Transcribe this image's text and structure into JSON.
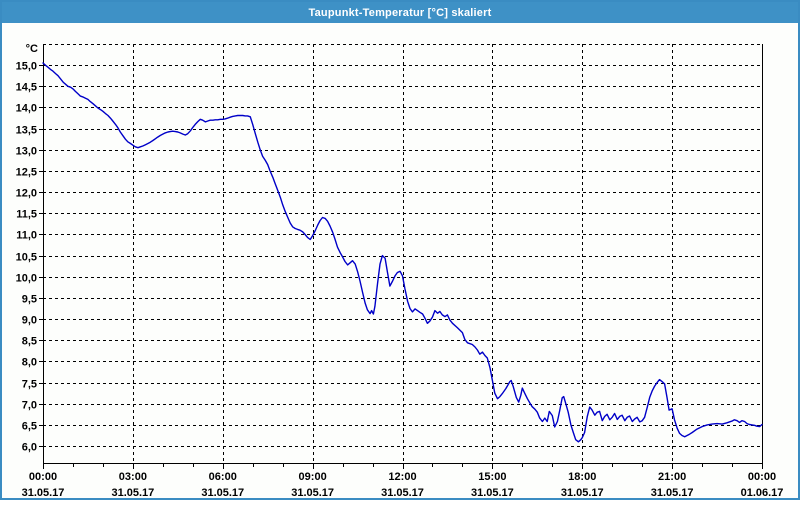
{
  "window": {
    "title": "Taupunkt-Temperatur [°C] skaliert",
    "title_bar_color": "#3e91c6",
    "border_color": "#3a8cc2",
    "background_color": "#fdfefc"
  },
  "chart_data": {
    "type": "line",
    "title": "Taupunkt-Temperatur [°C] skaliert",
    "unit_label": "°C",
    "line_color": "#0000c8",
    "grid": "dashed",
    "grid_color": "#000000",
    "legend_position": "none",
    "xlabel": "",
    "ylabel": "°C",
    "ylim": [
      5.6,
      15.5
    ],
    "y_grid_step": 0.5,
    "xlim_hours": [
      0,
      24
    ],
    "minor_x_tick_hours": 1,
    "y_ticks": [
      {
        "v": 15.0,
        "label": "15,0"
      },
      {
        "v": 14.5,
        "label": "14,5"
      },
      {
        "v": 14.0,
        "label": "14,0"
      },
      {
        "v": 13.5,
        "label": "13,5"
      },
      {
        "v": 13.0,
        "label": "13,0"
      },
      {
        "v": 12.5,
        "label": "12,5"
      },
      {
        "v": 12.0,
        "label": "12,0"
      },
      {
        "v": 11.5,
        "label": "11,5"
      },
      {
        "v": 11.0,
        "label": "11,0"
      },
      {
        "v": 10.5,
        "label": "10,5"
      },
      {
        "v": 10.0,
        "label": "10,0"
      },
      {
        "v": 9.5,
        "label": "9,5"
      },
      {
        "v": 9.0,
        "label": "9,0"
      },
      {
        "v": 8.5,
        "label": "8,5"
      },
      {
        "v": 8.0,
        "label": "8,0"
      },
      {
        "v": 7.5,
        "label": "7,5"
      },
      {
        "v": 7.0,
        "label": "7,0"
      },
      {
        "v": 6.5,
        "label": "6,5"
      },
      {
        "v": 6.0,
        "label": "6,0"
      }
    ],
    "x_ticks": [
      {
        "hour": 0,
        "time": "00:00",
        "date": "31.05.17"
      },
      {
        "hour": 3,
        "time": "03:00",
        "date": "31.05.17"
      },
      {
        "hour": 6,
        "time": "06:00",
        "date": "31.05.17"
      },
      {
        "hour": 9,
        "time": "09:00",
        "date": "31.05.17"
      },
      {
        "hour": 12,
        "time": "12:00",
        "date": "31.05.17"
      },
      {
        "hour": 15,
        "time": "15:00",
        "date": "31.05.17"
      },
      {
        "hour": 18,
        "time": "18:00",
        "date": "31.05.17"
      },
      {
        "hour": 21,
        "time": "21:00",
        "date": "31.05.17"
      },
      {
        "hour": 24,
        "time": "00:00",
        "date": "01.06.17"
      }
    ],
    "series": [
      {
        "name": "Taupunkt-Temperatur",
        "points": [
          [
            0,
            15.05
          ],
          [
            0.08,
            15.0
          ],
          [
            0.17,
            14.95
          ],
          [
            0.25,
            14.9
          ],
          [
            0.33,
            14.86
          ],
          [
            0.42,
            14.8
          ],
          [
            0.5,
            14.75
          ],
          [
            0.58,
            14.68
          ],
          [
            0.67,
            14.6
          ],
          [
            0.75,
            14.55
          ],
          [
            0.83,
            14.5
          ],
          [
            0.92,
            14.48
          ],
          [
            1.0,
            14.44
          ],
          [
            1.08,
            14.38
          ],
          [
            1.17,
            14.32
          ],
          [
            1.25,
            14.27
          ],
          [
            1.33,
            14.25
          ],
          [
            1.42,
            14.22
          ],
          [
            1.5,
            14.19
          ],
          [
            1.58,
            14.14
          ],
          [
            1.67,
            14.09
          ],
          [
            1.75,
            14.04
          ],
          [
            1.83,
            13.99
          ],
          [
            1.92,
            13.95
          ],
          [
            2.0,
            13.91
          ],
          [
            2.08,
            13.86
          ],
          [
            2.17,
            13.81
          ],
          [
            2.25,
            13.75
          ],
          [
            2.33,
            13.68
          ],
          [
            2.42,
            13.6
          ],
          [
            2.5,
            13.52
          ],
          [
            2.58,
            13.42
          ],
          [
            2.67,
            13.33
          ],
          [
            2.75,
            13.25
          ],
          [
            2.83,
            13.19
          ],
          [
            2.92,
            13.15
          ],
          [
            3.0,
            13.11
          ],
          [
            3.08,
            13.07
          ],
          [
            3.17,
            13.05
          ],
          [
            3.25,
            13.07
          ],
          [
            3.33,
            13.09
          ],
          [
            3.42,
            13.12
          ],
          [
            3.5,
            13.15
          ],
          [
            3.58,
            13.18
          ],
          [
            3.67,
            13.22
          ],
          [
            3.75,
            13.26
          ],
          [
            3.83,
            13.3
          ],
          [
            3.92,
            13.34
          ],
          [
            4.0,
            13.37
          ],
          [
            4.08,
            13.4
          ],
          [
            4.17,
            13.42
          ],
          [
            4.25,
            13.43
          ],
          [
            4.33,
            13.44
          ],
          [
            4.42,
            13.43
          ],
          [
            4.5,
            13.42
          ],
          [
            4.58,
            13.4
          ],
          [
            4.67,
            13.37
          ],
          [
            4.75,
            13.35
          ],
          [
            4.83,
            13.38
          ],
          [
            4.92,
            13.45
          ],
          [
            5.0,
            13.53
          ],
          [
            5.08,
            13.6
          ],
          [
            5.17,
            13.67
          ],
          [
            5.25,
            13.72
          ],
          [
            5.33,
            13.7
          ],
          [
            5.42,
            13.66
          ],
          [
            5.5,
            13.68
          ],
          [
            5.58,
            13.7
          ],
          [
            5.67,
            13.7
          ],
          [
            5.75,
            13.71
          ],
          [
            5.83,
            13.71
          ],
          [
            5.92,
            13.72
          ],
          [
            6.0,
            13.72
          ],
          [
            6.08,
            13.73
          ],
          [
            6.17,
            13.75
          ],
          [
            6.25,
            13.77
          ],
          [
            6.33,
            13.79
          ],
          [
            6.42,
            13.8
          ],
          [
            6.5,
            13.81
          ],
          [
            6.58,
            13.81
          ],
          [
            6.67,
            13.81
          ],
          [
            6.75,
            13.8
          ],
          [
            6.83,
            13.8
          ],
          [
            6.92,
            13.78
          ],
          [
            7.0,
            13.6
          ],
          [
            7.08,
            13.4
          ],
          [
            7.17,
            13.18
          ],
          [
            7.25,
            13.0
          ],
          [
            7.33,
            12.85
          ],
          [
            7.42,
            12.75
          ],
          [
            7.5,
            12.65
          ],
          [
            7.58,
            12.5
          ],
          [
            7.67,
            12.35
          ],
          [
            7.75,
            12.2
          ],
          [
            7.83,
            12.05
          ],
          [
            7.92,
            11.88
          ],
          [
            8.0,
            11.7
          ],
          [
            8.08,
            11.55
          ],
          [
            8.17,
            11.4
          ],
          [
            8.25,
            11.27
          ],
          [
            8.33,
            11.18
          ],
          [
            8.42,
            11.14
          ],
          [
            8.5,
            11.12
          ],
          [
            8.58,
            11.1
          ],
          [
            8.67,
            11.06
          ],
          [
            8.75,
            11.0
          ],
          [
            8.83,
            10.93
          ],
          [
            8.92,
            10.88
          ],
          [
            9.0,
            10.97
          ],
          [
            9.08,
            11.08
          ],
          [
            9.17,
            11.22
          ],
          [
            9.25,
            11.33
          ],
          [
            9.33,
            11.4
          ],
          [
            9.42,
            11.38
          ],
          [
            9.5,
            11.31
          ],
          [
            9.58,
            11.2
          ],
          [
            9.67,
            11.05
          ],
          [
            9.75,
            10.88
          ],
          [
            9.83,
            10.7
          ],
          [
            9.92,
            10.57
          ],
          [
            10.0,
            10.47
          ],
          [
            10.08,
            10.36
          ],
          [
            10.17,
            10.28
          ],
          [
            10.25,
            10.33
          ],
          [
            10.33,
            10.38
          ],
          [
            10.42,
            10.3
          ],
          [
            10.5,
            10.12
          ],
          [
            10.58,
            9.9
          ],
          [
            10.67,
            9.62
          ],
          [
            10.75,
            9.38
          ],
          [
            10.83,
            9.22
          ],
          [
            10.92,
            9.13
          ],
          [
            10.97,
            9.2
          ],
          [
            11.03,
            9.12
          ],
          [
            11.08,
            9.3
          ],
          [
            11.17,
            9.85
          ],
          [
            11.25,
            10.3
          ],
          [
            11.33,
            10.5
          ],
          [
            11.42,
            10.44
          ],
          [
            11.5,
            10.1
          ],
          [
            11.58,
            9.78
          ],
          [
            11.67,
            9.9
          ],
          [
            11.75,
            10.02
          ],
          [
            11.83,
            10.1
          ],
          [
            11.92,
            10.13
          ],
          [
            12.0,
            10.02
          ],
          [
            12.08,
            9.72
          ],
          [
            12.17,
            9.42
          ],
          [
            12.25,
            9.25
          ],
          [
            12.33,
            9.17
          ],
          [
            12.42,
            9.24
          ],
          [
            12.5,
            9.2
          ],
          [
            12.58,
            9.16
          ],
          [
            12.67,
            9.12
          ],
          [
            12.75,
            9.02
          ],
          [
            12.83,
            8.9
          ],
          [
            12.92,
            8.96
          ],
          [
            13.0,
            9.05
          ],
          [
            13.08,
            9.2
          ],
          [
            13.17,
            9.14
          ],
          [
            13.25,
            9.18
          ],
          [
            13.33,
            9.1
          ],
          [
            13.42,
            9.06
          ],
          [
            13.5,
            9.1
          ],
          [
            13.58,
            8.98
          ],
          [
            13.67,
            8.9
          ],
          [
            13.83,
            8.8
          ],
          [
            14.0,
            8.68
          ],
          [
            14.08,
            8.52
          ],
          [
            14.17,
            8.44
          ],
          [
            14.33,
            8.4
          ],
          [
            14.42,
            8.34
          ],
          [
            14.5,
            8.27
          ],
          [
            14.58,
            8.17
          ],
          [
            14.67,
            8.22
          ],
          [
            14.75,
            8.14
          ],
          [
            14.83,
            8.08
          ],
          [
            14.92,
            7.85
          ],
          [
            15.0,
            7.55
          ],
          [
            15.08,
            7.25
          ],
          [
            15.17,
            7.12
          ],
          [
            15.25,
            7.17
          ],
          [
            15.33,
            7.24
          ],
          [
            15.45,
            7.36
          ],
          [
            15.58,
            7.52
          ],
          [
            15.63,
            7.55
          ],
          [
            15.7,
            7.4
          ],
          [
            15.8,
            7.15
          ],
          [
            15.88,
            7.04
          ],
          [
            15.95,
            7.2
          ],
          [
            16.0,
            7.37
          ],
          [
            16.08,
            7.25
          ],
          [
            16.17,
            7.12
          ],
          [
            16.25,
            7.02
          ],
          [
            16.33,
            6.93
          ],
          [
            16.42,
            6.87
          ],
          [
            16.5,
            6.8
          ],
          [
            16.58,
            6.66
          ],
          [
            16.67,
            6.58
          ],
          [
            16.75,
            6.66
          ],
          [
            16.83,
            6.58
          ],
          [
            16.9,
            6.82
          ],
          [
            17.0,
            6.72
          ],
          [
            17.08,
            6.45
          ],
          [
            17.17,
            6.58
          ],
          [
            17.25,
            6.85
          ],
          [
            17.33,
            7.14
          ],
          [
            17.38,
            7.17
          ],
          [
            17.45,
            7.0
          ],
          [
            17.53,
            6.8
          ],
          [
            17.62,
            6.5
          ],
          [
            17.7,
            6.32
          ],
          [
            17.78,
            6.15
          ],
          [
            17.87,
            6.1
          ],
          [
            17.95,
            6.15
          ],
          [
            18.0,
            6.2
          ],
          [
            18.08,
            6.32
          ],
          [
            18.17,
            6.7
          ],
          [
            18.25,
            6.92
          ],
          [
            18.33,
            6.85
          ],
          [
            18.42,
            6.73
          ],
          [
            18.5,
            6.8
          ],
          [
            18.58,
            6.82
          ],
          [
            18.67,
            6.6
          ],
          [
            18.75,
            6.7
          ],
          [
            18.83,
            6.75
          ],
          [
            18.92,
            6.62
          ],
          [
            19.0,
            6.68
          ],
          [
            19.08,
            6.77
          ],
          [
            19.17,
            6.63
          ],
          [
            19.25,
            6.7
          ],
          [
            19.33,
            6.73
          ],
          [
            19.42,
            6.6
          ],
          [
            19.5,
            6.68
          ],
          [
            19.58,
            6.71
          ],
          [
            19.67,
            6.58
          ],
          [
            19.75,
            6.64
          ],
          [
            19.83,
            6.68
          ],
          [
            19.92,
            6.57
          ],
          [
            20.0,
            6.6
          ],
          [
            20.08,
            6.68
          ],
          [
            20.17,
            6.92
          ],
          [
            20.25,
            7.15
          ],
          [
            20.33,
            7.3
          ],
          [
            20.42,
            7.42
          ],
          [
            20.5,
            7.5
          ],
          [
            20.58,
            7.57
          ],
          [
            20.67,
            7.52
          ],
          [
            20.75,
            7.47
          ],
          [
            20.83,
            7.15
          ],
          [
            20.9,
            6.85
          ],
          [
            20.97,
            6.87
          ],
          [
            21.0,
            6.88
          ],
          [
            21.08,
            6.62
          ],
          [
            21.17,
            6.42
          ],
          [
            21.25,
            6.3
          ],
          [
            21.33,
            6.25
          ],
          [
            21.42,
            6.22
          ],
          [
            21.5,
            6.25
          ],
          [
            21.58,
            6.28
          ],
          [
            21.67,
            6.32
          ],
          [
            21.83,
            6.4
          ],
          [
            22.0,
            6.46
          ],
          [
            22.17,
            6.5
          ],
          [
            22.33,
            6.52
          ],
          [
            22.5,
            6.53
          ],
          [
            22.67,
            6.52
          ],
          [
            22.83,
            6.55
          ],
          [
            23.0,
            6.59
          ],
          [
            23.08,
            6.62
          ],
          [
            23.17,
            6.6
          ],
          [
            23.25,
            6.56
          ],
          [
            23.33,
            6.6
          ],
          [
            23.42,
            6.58
          ],
          [
            23.5,
            6.53
          ],
          [
            23.58,
            6.51
          ],
          [
            23.67,
            6.5
          ],
          [
            23.75,
            6.49
          ],
          [
            23.83,
            6.47
          ],
          [
            23.92,
            6.46
          ],
          [
            24.0,
            6.51
          ]
        ]
      }
    ]
  }
}
